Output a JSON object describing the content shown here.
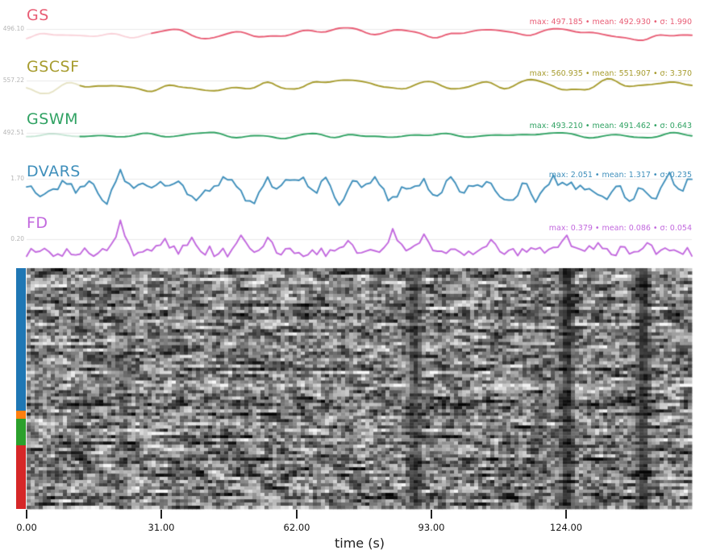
{
  "figure": {
    "kind": "fMRI confounds / carpet QC plot",
    "background": "#ffffff",
    "grid_color": "#eaeaea",
    "tick_color": "#222222",
    "ytick_text_color": "#b5b5b5"
  },
  "chart_data": {
    "type": "line+heatmap",
    "x_axis": {
      "label": "time (s)",
      "ticks": [
        0.0,
        31.0,
        62.0,
        93.0,
        124.0
      ],
      "tick_labels": [
        "0.00",
        "31.00",
        "62.00",
        "93.00",
        "124.00"
      ],
      "total_seconds": 153,
      "grid": false
    },
    "series": [
      {
        "name": "GS",
        "color": "#e85d75",
        "y_tick_label": "496.10",
        "grid_value": 496.1,
        "max": 497.185,
        "mean": 492.93,
        "sigma": 1.99,
        "stats_text": "max: 497.185 • mean: 492.930 • σ: 1.990",
        "notable_peaks": []
      },
      {
        "name": "GSCSF",
        "color": "#a79c2f",
        "y_tick_label": "557.22",
        "grid_value": 557.22,
        "max": 560.935,
        "mean": 551.907,
        "sigma": 3.37,
        "stats_text": "max: 560.935 • mean: 551.907 • σ: 3.370",
        "notable_peaks": []
      },
      {
        "name": "GSWM",
        "color": "#30a263",
        "y_tick_label": "492.51",
        "grid_value": 492.51,
        "max": 493.21,
        "mean": 491.462,
        "sigma": 0.643,
        "stats_text": "max: 493.210 • mean: 491.462 • σ: 0.643",
        "notable_peaks": []
      },
      {
        "name": "DVARS",
        "color": "#3f8fbb",
        "y_tick_label": "1.70",
        "grid_value": 1.7,
        "max": 2.051,
        "mean": 1.317,
        "sigma": 0.235,
        "stats_text": "max: 2.051 • mean: 1.317 • σ: 0.235",
        "notable_peaks": [
          {
            "t_frac": 0.142,
            "value": 2.051
          },
          {
            "t_frac": 0.36,
            "value": 1.78
          },
          {
            "t_frac": 0.6,
            "value": 1.72
          },
          {
            "t_frac": 0.79,
            "value": 1.85
          },
          {
            "t_frac": 0.965,
            "value": 1.95
          }
        ]
      },
      {
        "name": "FD",
        "color": "#c269de",
        "y_tick_label": "0.20",
        "grid_value": 0.2,
        "max": 0.379,
        "mean": 0.086,
        "sigma": 0.054,
        "stats_text": "max: 0.379 • mean: 0.086 • σ: 0.054",
        "notable_peaks": [
          {
            "t_frac": 0.142,
            "value": 0.379
          },
          {
            "t_frac": 0.205,
            "value": 0.21
          },
          {
            "t_frac": 0.245,
            "value": 0.22
          },
          {
            "t_frac": 0.325,
            "value": 0.24
          },
          {
            "t_frac": 0.365,
            "value": 0.22
          },
          {
            "t_frac": 0.48,
            "value": 0.19
          },
          {
            "t_frac": 0.55,
            "value": 0.3
          },
          {
            "t_frac": 0.595,
            "value": 0.25
          },
          {
            "t_frac": 0.7,
            "value": 0.2
          },
          {
            "t_frac": 0.81,
            "value": 0.24
          },
          {
            "t_frac": 0.86,
            "value": 0.17
          },
          {
            "t_frac": 0.93,
            "value": 0.17
          }
        ]
      }
    ],
    "carpet": {
      "description": "grayscale voxel-intensity carpet (voxels × time) with tissue legend strip",
      "colormap": "gray",
      "rows": 75,
      "cols": 165,
      "legend_segments": [
        {
          "name": "segment-blue",
          "color": "#1f77b4",
          "fraction": 0.592
        },
        {
          "name": "segment-orange",
          "color": "#ff7f0e",
          "fraction": 0.033
        },
        {
          "name": "segment-green",
          "color": "#2ca02c",
          "fraction": 0.11
        },
        {
          "name": "segment-red",
          "color": "#d62728",
          "fraction": 0.265
        }
      ]
    }
  }
}
